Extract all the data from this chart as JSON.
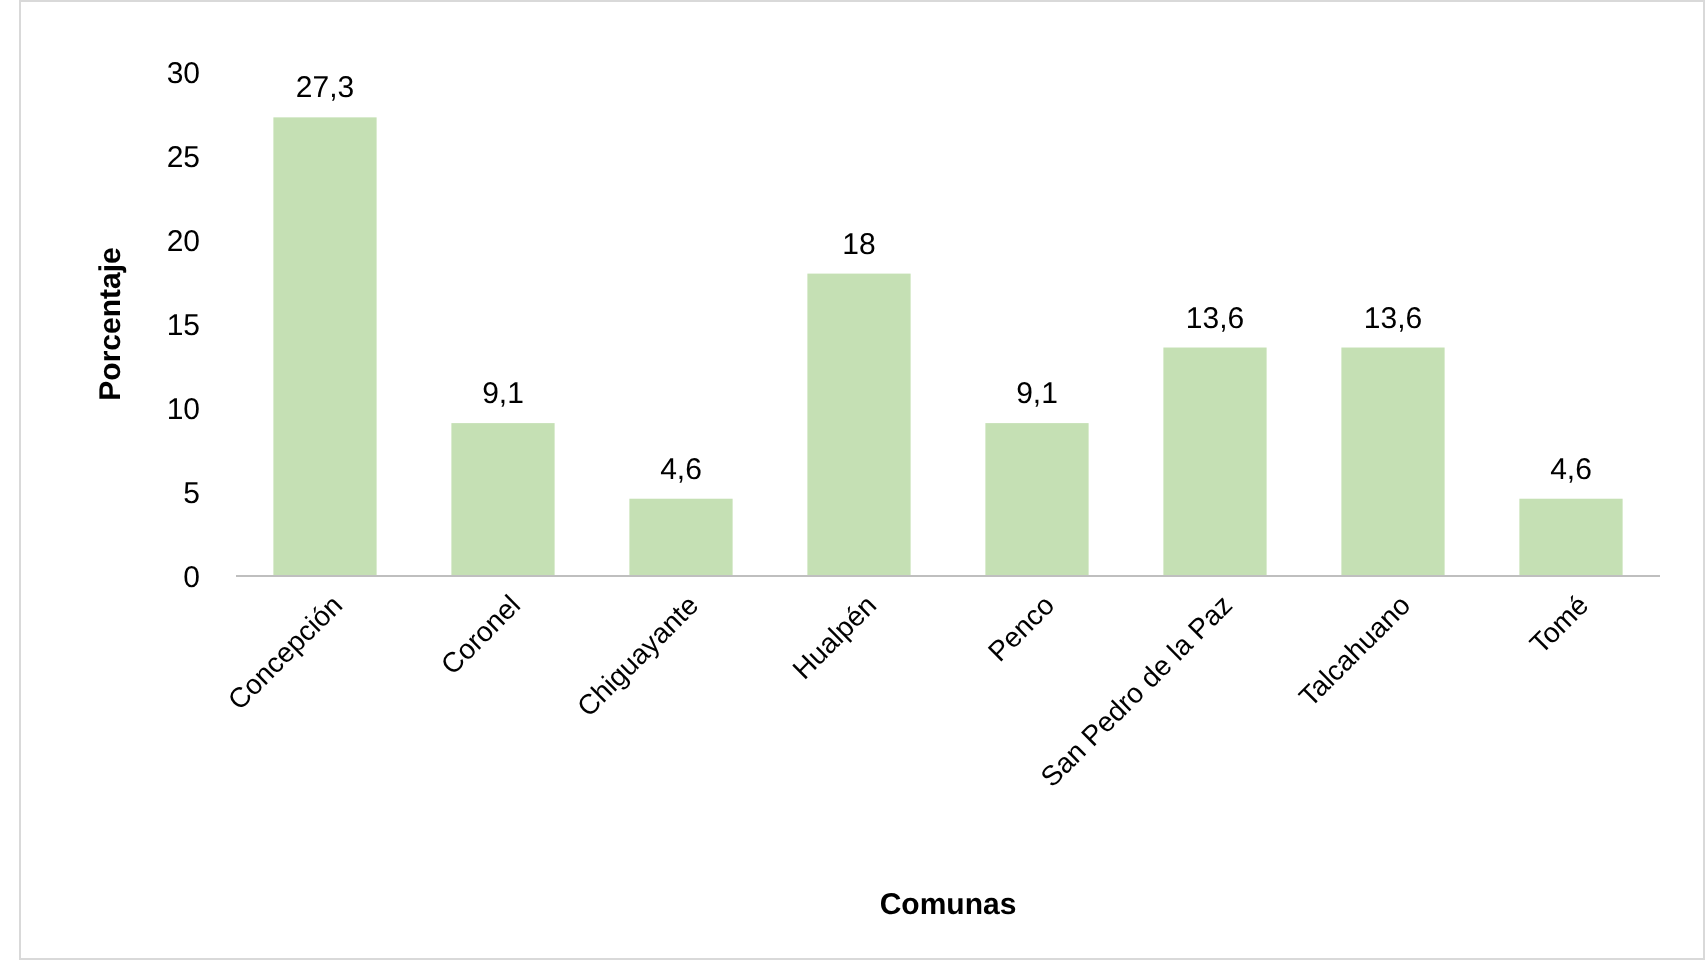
{
  "chart_data": {
    "type": "bar",
    "xlabel": "Comunas",
    "ylabel": "Porcentaje",
    "categories": [
      "Concepción",
      "Coronel",
      "Chiguayante",
      "Hualpén",
      "Penco",
      "San Pedro de la Paz",
      "Talcahuano",
      "Tomé"
    ],
    "values": [
      27.3,
      9.1,
      4.6,
      18,
      9.1,
      13.6,
      13.6,
      4.6
    ],
    "value_labels": [
      "27,3",
      "9,1",
      "4,6",
      "18",
      "9,1",
      "13,6",
      "13,6",
      "4,6"
    ],
    "color": "#c5e0b4",
    "ylim": [
      0,
      30
    ],
    "yticks": [
      0,
      5,
      10,
      15,
      20,
      25,
      30
    ]
  }
}
